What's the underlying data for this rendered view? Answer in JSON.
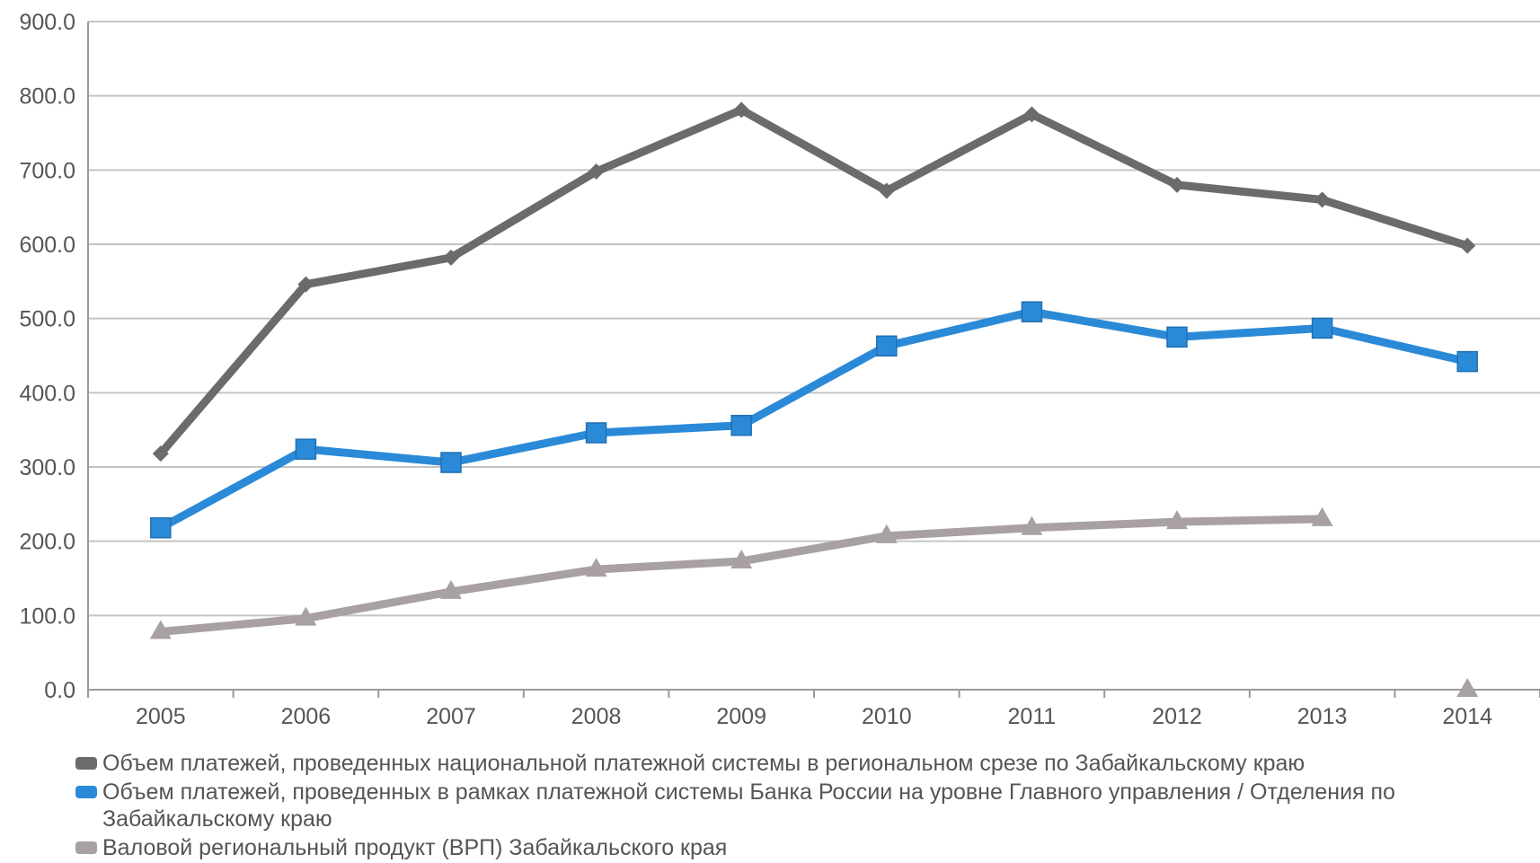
{
  "chart_data": {
    "type": "line",
    "title": "",
    "xlabel": "",
    "ylabel": "",
    "ylim": [
      0,
      900
    ],
    "y_ticks": [
      "0.0",
      "100.0",
      "200.0",
      "300.0",
      "400.0",
      "500.0",
      "600.0",
      "700.0",
      "800.0",
      "900.0"
    ],
    "categories": [
      "2005",
      "2006",
      "2007",
      "2008",
      "2009",
      "2010",
      "2011",
      "2012",
      "2013",
      "2014"
    ],
    "grid": true,
    "legend_position": "bottom",
    "series": [
      {
        "name": "Объем платежей, проведенных национальной платежной системы в региональном срезе по Забайкальскому краю",
        "color": "#6b6b6b",
        "marker": "diamond",
        "values": [
          318,
          546,
          582,
          698,
          781,
          672,
          775,
          680,
          660,
          598
        ]
      },
      {
        "name": "Объем платежей, проведенных в рамках платежной системы Банка России на уровне Главного управления  / Отделения по Забайкальскому краю",
        "color": "#2b8ad8",
        "marker": "square",
        "values": [
          218,
          324,
          306,
          346,
          356,
          463,
          509,
          475,
          487,
          442
        ]
      },
      {
        "name": "Валовой региональный продукт (ВРП) Забайкальского края",
        "color": "#a8a0a4",
        "marker": "triangle",
        "values": [
          78,
          96,
          132,
          162,
          173,
          207,
          218,
          226,
          230,
          0
        ]
      }
    ]
  }
}
